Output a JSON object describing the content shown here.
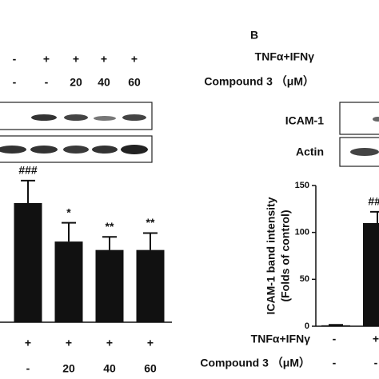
{
  "panel_label": "B",
  "blots": [
    {
      "conditions": [
        {
          "values": [
            "-",
            "+",
            "+",
            "+",
            "+"
          ]
        },
        {
          "values": [
            "-",
            "-",
            "20",
            "40",
            "60"
          ]
        }
      ]
    },
    {
      "conditions": [
        {
          "name": "TNFα+IFNγ"
        },
        {
          "name": "Compound 3 （μM）"
        }
      ],
      "bands": [
        "ICAM-1",
        "Actin"
      ]
    }
  ],
  "chart_data": [
    {
      "type": "bar",
      "values": [
        127,
        86,
        77,
        77
      ],
      "errors": [
        24,
        20,
        14,
        18
      ],
      "annotations": [
        "###",
        "*",
        "**",
        "**"
      ],
      "color": "#111111",
      "ylim": [
        0,
        150
      ],
      "conditions": [
        {
          "values": [
            "+",
            "+",
            "+",
            "+"
          ]
        },
        {
          "values": [
            "-",
            "20",
            "40",
            "60"
          ]
        }
      ]
    },
    {
      "type": "bar",
      "values": [
        1,
        110
      ],
      "errors": [
        0.5,
        12
      ],
      "annotations": [
        null,
        "###"
      ],
      "color": "#111111",
      "ylim": [
        0,
        150
      ],
      "yticks": [
        0,
        50,
        100,
        150
      ],
      "y_label": [
        "ICAM-1 band intensity",
        "(Folds of control)"
      ],
      "conditions": [
        {
          "name": "TNFα+IFNγ",
          "values": [
            "-",
            "+"
          ]
        },
        {
          "name": "Compound 3 （μM）",
          "values": [
            "-",
            "-"
          ]
        }
      ]
    }
  ]
}
